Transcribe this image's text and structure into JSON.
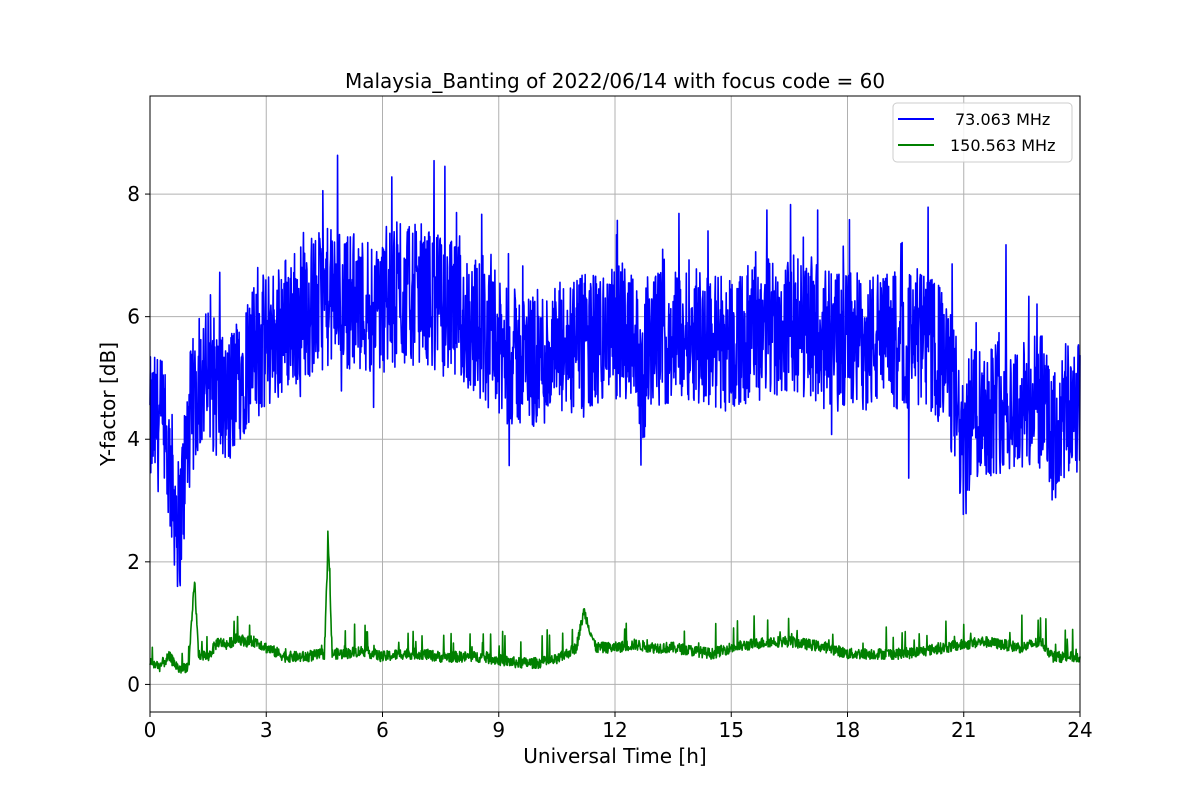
{
  "chart_data": {
    "type": "line",
    "title": "Malaysia_Banting of 2022/06/14 with focus code = 60",
    "xlabel": "Universal Time [h]",
    "ylabel": "Y-factor [dB]",
    "xlim": [
      0,
      24
    ],
    "ylim": [
      -0.45,
      9.6
    ],
    "xticks": [
      0,
      3,
      6,
      9,
      12,
      15,
      18,
      21,
      24
    ],
    "yticks": [
      0,
      2,
      4,
      6,
      8
    ],
    "grid": true,
    "legend_position": "top-right",
    "series": [
      {
        "name": "73.063 MHz",
        "color": "#0000ff",
        "x": [
          0.0,
          0.25,
          0.5,
          0.75,
          1.0,
          1.25,
          1.5,
          1.75,
          2.0,
          2.25,
          2.5,
          2.75,
          3.0,
          3.5,
          4.0,
          4.5,
          5.0,
          5.5,
          6.0,
          6.5,
          7.0,
          7.5,
          8.0,
          8.5,
          9.0,
          9.5,
          10.0,
          10.5,
          11.0,
          11.5,
          12.0,
          12.5,
          12.7,
          12.8,
          13.0,
          13.5,
          14.0,
          14.5,
          15.0,
          15.5,
          16.0,
          16.5,
          17.0,
          17.5,
          18.0,
          18.5,
          19.0,
          19.5,
          20.0,
          20.5,
          20.8,
          21.0,
          21.2,
          21.5,
          22.0,
          22.5,
          23.0,
          23.3,
          23.6,
          24.0
        ],
        "y": [
          4.2,
          4.3,
          3.6,
          2.5,
          4.2,
          4.9,
          5.0,
          4.8,
          4.5,
          5.0,
          5.3,
          5.4,
          5.6,
          5.9,
          6.1,
          6.3,
          6.3,
          6.2,
          6.2,
          6.3,
          6.4,
          6.2,
          6.0,
          5.8,
          5.4,
          5.3,
          5.3,
          5.4,
          5.5,
          5.6,
          5.7,
          5.9,
          4.5,
          5.5,
          5.6,
          5.7,
          5.8,
          5.6,
          5.6,
          5.7,
          5.8,
          5.9,
          5.8,
          5.6,
          5.6,
          5.6,
          5.6,
          5.6,
          5.6,
          5.3,
          4.6,
          3.6,
          4.5,
          4.5,
          4.6,
          4.5,
          4.6,
          3.9,
          4.4,
          4.5
        ]
      },
      {
        "name": "150.563 MHz",
        "color": "#008000",
        "x": [
          0.0,
          0.25,
          0.5,
          0.75,
          1.0,
          1.15,
          1.25,
          1.5,
          1.75,
          2.0,
          2.25,
          2.5,
          2.75,
          3.0,
          3.5,
          4.0,
          4.5,
          4.6,
          4.7,
          5.0,
          5.5,
          6.0,
          6.5,
          7.0,
          7.5,
          8.0,
          8.5,
          9.0,
          9.5,
          10.0,
          10.5,
          11.0,
          11.2,
          11.5,
          12.0,
          12.5,
          13.0,
          13.5,
          14.0,
          14.5,
          15.0,
          15.5,
          16.0,
          16.5,
          17.0,
          17.5,
          18.0,
          18.5,
          19.0,
          19.5,
          20.0,
          20.5,
          21.0,
          21.5,
          22.0,
          22.5,
          23.0,
          23.3,
          23.6,
          24.0
        ],
        "y": [
          0.35,
          0.3,
          0.45,
          0.25,
          0.3,
          1.7,
          0.5,
          0.45,
          0.7,
          0.65,
          0.75,
          0.7,
          0.7,
          0.6,
          0.45,
          0.45,
          0.5,
          2.35,
          0.5,
          0.5,
          0.55,
          0.45,
          0.5,
          0.5,
          0.45,
          0.45,
          0.45,
          0.4,
          0.35,
          0.35,
          0.4,
          0.6,
          1.2,
          0.6,
          0.6,
          0.65,
          0.6,
          0.6,
          0.55,
          0.5,
          0.6,
          0.65,
          0.7,
          0.7,
          0.65,
          0.6,
          0.5,
          0.5,
          0.5,
          0.5,
          0.55,
          0.6,
          0.65,
          0.7,
          0.65,
          0.6,
          0.7,
          0.45,
          0.45,
          0.45
        ]
      }
    ]
  }
}
